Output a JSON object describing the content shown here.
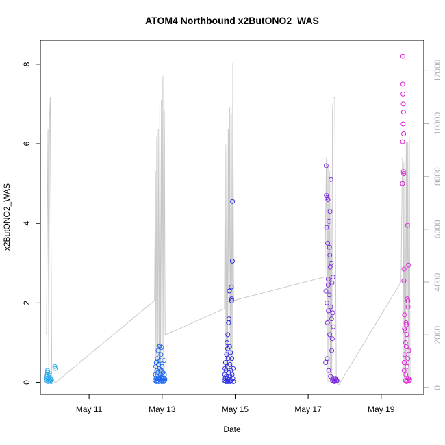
{
  "chart_data": {
    "type": "scatter",
    "title": "ATOM4 Northbound x2ButONO2_WAS",
    "xlabel": "Date",
    "ylabel": "x2ButONO2_WAS",
    "xlim": [
      "2016-05-09T16:00",
      "2016-05-20T04:00"
    ],
    "ylim": [
      -0.3,
      8.6
    ],
    "x_ticks": [
      {
        "x": "2016-05-11",
        "label": "May 11"
      },
      {
        "x": "2016-05-13",
        "label": "May 13"
      },
      {
        "x": "2016-05-15",
        "label": "May 15"
      },
      {
        "x": "2016-05-17",
        "label": "May 17"
      },
      {
        "x": "2016-05-19",
        "label": "May 19"
      }
    ],
    "y_ticks": [
      0,
      2,
      4,
      6,
      8
    ],
    "y2_ticks": [
      0,
      2000,
      4000,
      6000,
      8000,
      10000,
      12000
    ],
    "y2lim": [
      -250,
      13150
    ],
    "grid": false,
    "background_line": {
      "color": "#c8c8c8",
      "description_axis": "right",
      "points": [
        [
          "2016-05-09T20:00",
          2000
        ],
        [
          "2016-05-09T21:00",
          9800
        ],
        [
          "2016-05-09T21:30",
          800
        ],
        [
          "2016-05-09T22:00",
          10200
        ],
        [
          "2016-05-09T22:30",
          11000
        ],
        [
          "2016-05-09T23:30",
          300
        ],
        [
          "2016-05-10T02:00",
          200
        ],
        [
          "2016-05-12T19:00",
          3300
        ],
        [
          "2016-05-12T19:40",
          8200
        ],
        [
          "2016-05-12T20:00",
          300
        ],
        [
          "2016-05-12T20:30",
          9500
        ],
        [
          "2016-05-12T21:00",
          300
        ],
        [
          "2016-05-12T21:30",
          9800
        ],
        [
          "2016-05-12T22:00",
          300
        ],
        [
          "2016-05-12T22:30",
          10700
        ],
        [
          "2016-05-12T23:00",
          300
        ],
        [
          "2016-05-12T23:30",
          10900
        ],
        [
          "2016-05-13T00:00",
          300
        ],
        [
          "2016-05-13T00:30",
          11800
        ],
        [
          "2016-05-13T01:00",
          300
        ],
        [
          "2016-05-13T01:30",
          10500
        ],
        [
          "2016-05-13T02:00",
          2000
        ],
        [
          "2016-05-14T17:00",
          3000
        ],
        [
          "2016-05-14T17:30",
          9200
        ],
        [
          "2016-05-14T18:00",
          300
        ],
        [
          "2016-05-14T18:30",
          9200
        ],
        [
          "2016-05-14T19:00",
          300
        ],
        [
          "2016-05-14T19:30",
          9800
        ],
        [
          "2016-05-14T20:00",
          300
        ],
        [
          "2016-05-14T20:30",
          10600
        ],
        [
          "2016-05-14T21:00",
          300
        ],
        [
          "2016-05-14T21:30",
          10400
        ],
        [
          "2016-05-14T22:00",
          300
        ],
        [
          "2016-05-14T22:30",
          12300
        ],
        [
          "2016-05-14T23:00",
          3300
        ],
        [
          "2016-05-17T11:00",
          4200
        ],
        [
          "2016-05-17T12:00",
          8700
        ],
        [
          "2016-05-17T12:30",
          200
        ],
        [
          "2016-05-17T13:00",
          8400
        ],
        [
          "2016-05-17T13:30",
          200
        ],
        [
          "2016-05-17T14:00",
          8200
        ],
        [
          "2016-05-17T14:30",
          200
        ],
        [
          "2016-05-17T15:00",
          8600
        ],
        [
          "2016-05-17T15:30",
          200
        ],
        [
          "2016-05-17T16:00",
          10500
        ],
        [
          "2016-05-17T16:30",
          11000
        ],
        [
          "2016-05-17T17:30",
          11000
        ],
        [
          "2016-05-17T18:30",
          200
        ],
        [
          "2016-05-17T20:00",
          100
        ],
        [
          "2016-05-19T13:00",
          4000
        ],
        [
          "2016-05-19T14:00",
          8700
        ],
        [
          "2016-05-19T14:30",
          8500
        ],
        [
          "2016-05-19T15:00",
          200
        ],
        [
          "2016-05-19T15:30",
          8600
        ],
        [
          "2016-05-19T16:00",
          200
        ],
        [
          "2016-05-19T16:30",
          9300
        ],
        [
          "2016-05-19T17:00",
          200
        ],
        [
          "2016-05-19T17:30",
          9300
        ],
        [
          "2016-05-19T18:00",
          200
        ],
        [
          "2016-05-19T18:30",
          9500
        ],
        [
          "2016-05-19T19:00",
          200
        ]
      ]
    },
    "series": [
      {
        "color": "#2aa8e8",
        "points": [
          [
            "2016-05-09T20:00",
            0.05
          ],
          [
            "2016-05-09T20:10",
            0.1
          ],
          [
            "2016-05-09T20:20",
            0.15
          ],
          [
            "2016-05-09T20:30",
            0.2
          ],
          [
            "2016-05-09T20:40",
            0.3
          ],
          [
            "2016-05-09T20:50",
            0.25
          ],
          [
            "2016-05-09T21:00",
            0.02
          ],
          [
            "2016-05-09T21:10",
            0.08
          ],
          [
            "2016-05-09T21:20",
            0.12
          ],
          [
            "2016-05-09T21:40",
            0.18
          ],
          [
            "2016-05-09T22:00",
            0.05
          ],
          [
            "2016-05-09T22:20",
            0.03
          ],
          [
            "2016-05-09T22:40",
            0.1
          ],
          [
            "2016-05-09T23:00",
            0.02
          ],
          [
            "2016-05-09T23:20",
            0.07
          ],
          [
            "2016-05-10T01:30",
            0.4
          ],
          [
            "2016-05-10T01:40",
            0.35
          ],
          [
            "2016-05-09T21:50",
            0.22
          ]
        ]
      },
      {
        "color": "#1a66f0",
        "points": [
          [
            "2016-05-12T19:30",
            0.05
          ],
          [
            "2016-05-12T19:40",
            0.2
          ],
          [
            "2016-05-12T19:50",
            0.4
          ],
          [
            "2016-05-12T20:00",
            0.1
          ],
          [
            "2016-05-12T20:10",
            0.5
          ],
          [
            "2016-05-12T20:20",
            0.02
          ],
          [
            "2016-05-12T20:30",
            0.3
          ],
          [
            "2016-05-12T20:40",
            0.15
          ],
          [
            "2016-05-12T20:50",
            0.6
          ],
          [
            "2016-05-12T21:00",
            0.05
          ],
          [
            "2016-05-12T21:10",
            0.25
          ],
          [
            "2016-05-12T21:20",
            0.8
          ],
          [
            "2016-05-12T21:30",
            0.1
          ],
          [
            "2016-05-12T21:40",
            0.45
          ],
          [
            "2016-05-12T21:50",
            0.02
          ],
          [
            "2016-05-12T22:00",
            0.9
          ],
          [
            "2016-05-12T22:10",
            0.35
          ],
          [
            "2016-05-12T22:20",
            0.08
          ],
          [
            "2016-05-12T22:30",
            0.92
          ],
          [
            "2016-05-12T22:40",
            0.55
          ],
          [
            "2016-05-12T22:50",
            0.2
          ],
          [
            "2016-05-12T23:00",
            0.05
          ],
          [
            "2016-05-12T23:10",
            0.7
          ],
          [
            "2016-05-12T23:20",
            0.3
          ],
          [
            "2016-05-12T23:30",
            0.12
          ],
          [
            "2016-05-12T23:40",
            0.88
          ],
          [
            "2016-05-12T23:50",
            0.02
          ],
          [
            "2016-05-13T00:00",
            0.4
          ],
          [
            "2016-05-13T00:10",
            0.15
          ],
          [
            "2016-05-13T00:20",
            0.05
          ],
          [
            "2016-05-13T00:30",
            0.25
          ],
          [
            "2016-05-13T00:40",
            0.1
          ],
          [
            "2016-05-13T01:00",
            0.02
          ],
          [
            "2016-05-13T01:10",
            0.1
          ],
          [
            "2016-05-13T01:20",
            0.55
          ],
          [
            "2016-05-13T01:30",
            0.2
          ],
          [
            "2016-05-13T01:40",
            0.05
          ],
          [
            "2016-05-13T01:50",
            0.08
          ]
        ]
      },
      {
        "color": "#2a2ae8",
        "points": [
          [
            "2016-05-14T17:00",
            0.05
          ],
          [
            "2016-05-14T17:10",
            0.2
          ],
          [
            "2016-05-14T17:20",
            0.35
          ],
          [
            "2016-05-14T17:30",
            0.1
          ],
          [
            "2016-05-14T17:40",
            0.5
          ],
          [
            "2016-05-14T17:50",
            0.02
          ],
          [
            "2016-05-14T18:00",
            0.3
          ],
          [
            "2016-05-14T18:10",
            0.15
          ],
          [
            "2016-05-14T18:20",
            0.7
          ],
          [
            "2016-05-14T18:30",
            0.05
          ],
          [
            "2016-05-14T18:40",
            1.0
          ],
          [
            "2016-05-14T18:50",
            0.4
          ],
          [
            "2016-05-14T19:00",
            0.1
          ],
          [
            "2016-05-14T19:10",
            1.2
          ],
          [
            "2016-05-14T19:20",
            0.02
          ],
          [
            "2016-05-14T19:30",
            0.6
          ],
          [
            "2016-05-14T19:40",
            1.5
          ],
          [
            "2016-05-14T19:50",
            0.25
          ],
          [
            "2016-05-14T20:00",
            0.08
          ],
          [
            "2016-05-14T20:10",
            2.3
          ],
          [
            "2016-05-14T20:20",
            0.9
          ],
          [
            "2016-05-14T20:30",
            0.45
          ],
          [
            "2016-05-14T20:40",
            0.15
          ],
          [
            "2016-05-14T20:50",
            0.02
          ],
          [
            "2016-05-14T21:00",
            0.75
          ],
          [
            "2016-05-14T21:10",
            0.3
          ],
          [
            "2016-05-14T21:20",
            0.05
          ],
          [
            "2016-05-14T21:30",
            2.4
          ],
          [
            "2016-05-14T21:40",
            2.1
          ],
          [
            "2016-05-14T21:50",
            0.6
          ],
          [
            "2016-05-14T22:00",
            0.2
          ],
          [
            "2016-05-14T22:10",
            3.05
          ],
          [
            "2016-05-14T22:20",
            4.55
          ],
          [
            "2016-05-14T22:30",
            0.1
          ],
          [
            "2016-05-14T22:40",
            0.35
          ],
          [
            "2016-05-14T22:50",
            0.02
          ],
          [
            "2016-05-14T21:45",
            2.05
          ],
          [
            "2016-05-14T19:55",
            1.6
          ],
          [
            "2016-05-14T19:05",
            0.85
          ]
        ]
      },
      {
        "color": "#7a2ae0",
        "points": [
          [
            "2016-05-17T11:30",
            0.5
          ],
          [
            "2016-05-17T11:40",
            2.3
          ],
          [
            "2016-05-17T11:50",
            5.45
          ],
          [
            "2016-05-17T12:00",
            4.7
          ],
          [
            "2016-05-17T12:10",
            3.9
          ],
          [
            "2016-05-17T12:20",
            2.0
          ],
          [
            "2016-05-17T12:30",
            0.6
          ],
          [
            "2016-05-17T12:40",
            1.5
          ],
          [
            "2016-05-17T12:50",
            3.5
          ],
          [
            "2016-05-17T13:00",
            4.6
          ],
          [
            "2016-05-17T13:10",
            2.6
          ],
          [
            "2016-05-17T13:20",
            1.8
          ],
          [
            "2016-05-17T13:30",
            0.3
          ],
          [
            "2016-05-17T13:40",
            4.05
          ],
          [
            "2016-05-17T13:50",
            2.2
          ],
          [
            "2016-05-17T14:00",
            3.4
          ],
          [
            "2016-05-17T14:10",
            1.2
          ],
          [
            "2016-05-17T14:20",
            4.3
          ],
          [
            "2016-05-17T14:30",
            2.9
          ],
          [
            "2016-05-17T14:40",
            0.15
          ],
          [
            "2016-05-17T14:50",
            1.9
          ],
          [
            "2016-05-17T15:00",
            5.1
          ],
          [
            "2016-05-17T15:10",
            3.0
          ],
          [
            "2016-05-17T15:20",
            1.6
          ],
          [
            "2016-05-17T15:30",
            0.8
          ],
          [
            "2016-05-17T15:40",
            2.5
          ],
          [
            "2016-05-17T15:50",
            1.1
          ],
          [
            "2016-05-17T16:00",
            0.05
          ],
          [
            "2016-05-17T16:10",
            1.75
          ],
          [
            "2016-05-17T16:20",
            2.65
          ],
          [
            "2016-05-17T16:30",
            1.4
          ],
          [
            "2016-05-17T16:40",
            0.1
          ],
          [
            "2016-05-17T17:00",
            0.05
          ],
          [
            "2016-05-17T17:20",
            0.02
          ],
          [
            "2016-05-17T17:40",
            0.08
          ],
          [
            "2016-05-17T18:00",
            0.1
          ],
          [
            "2016-05-17T18:20",
            0.03
          ],
          [
            "2016-05-17T18:40",
            0.06
          ],
          [
            "2016-05-17T19:00",
            0.04
          ],
          [
            "2016-05-17T12:15",
            4.65
          ],
          [
            "2016-05-17T14:15",
            3.2
          ],
          [
            "2016-05-17T13:05",
            2.45
          ]
        ]
      },
      {
        "color": "#e020d8",
        "points": [
          [
            "2016-05-19T14:00",
            5.0
          ],
          [
            "2016-05-19T14:05",
            6.05
          ],
          [
            "2016-05-19T14:10",
            7.5
          ],
          [
            "2016-05-19T14:15",
            8.2
          ],
          [
            "2016-05-19T14:20",
            7.25
          ],
          [
            "2016-05-19T14:25",
            6.5
          ],
          [
            "2016-05-19T14:30",
            7.0
          ],
          [
            "2016-05-19T14:35",
            5.3
          ],
          [
            "2016-05-19T14:40",
            6.8
          ],
          [
            "2016-05-19T14:45",
            6.25
          ],
          [
            "2016-05-19T14:50",
            5.25
          ],
          [
            "2016-05-19T14:55",
            2.55
          ],
          [
            "2016-05-19T15:00",
            2.85
          ],
          [
            "2016-05-19T15:05",
            0.3
          ],
          [
            "2016-05-19T15:10",
            0.5
          ],
          [
            "2016-05-19T15:20",
            1.7
          ],
          [
            "2016-05-19T15:30",
            0.7
          ],
          [
            "2016-05-19T15:40",
            1.3
          ],
          [
            "2016-05-19T15:50",
            0.05
          ],
          [
            "2016-05-19T16:00",
            1.0
          ],
          [
            "2016-05-19T16:10",
            0.2
          ],
          [
            "2016-05-19T16:20",
            1.5
          ],
          [
            "2016-05-19T16:30",
            0.9
          ],
          [
            "2016-05-19T16:40",
            0.02
          ],
          [
            "2016-05-19T16:50",
            1.2
          ],
          [
            "2016-05-19T17:00",
            0.4
          ],
          [
            "2016-05-19T17:10",
            2.1
          ],
          [
            "2016-05-19T17:20",
            3.95
          ],
          [
            "2016-05-19T17:30",
            0.6
          ],
          [
            "2016-05-19T17:40",
            1.9
          ],
          [
            "2016-05-19T17:50",
            0.1
          ],
          [
            "2016-05-19T18:00",
            2.95
          ],
          [
            "2016-05-19T18:10",
            0.8
          ],
          [
            "2016-05-19T18:20",
            0.05
          ],
          [
            "2016-05-19T18:30",
            0.03
          ],
          [
            "2016-05-19T18:40",
            0.08
          ],
          [
            "2016-05-19T15:15",
            1.35
          ],
          [
            "2016-05-19T16:35",
            1.45
          ],
          [
            "2016-05-19T17:35",
            2.05
          ]
        ]
      }
    ]
  }
}
